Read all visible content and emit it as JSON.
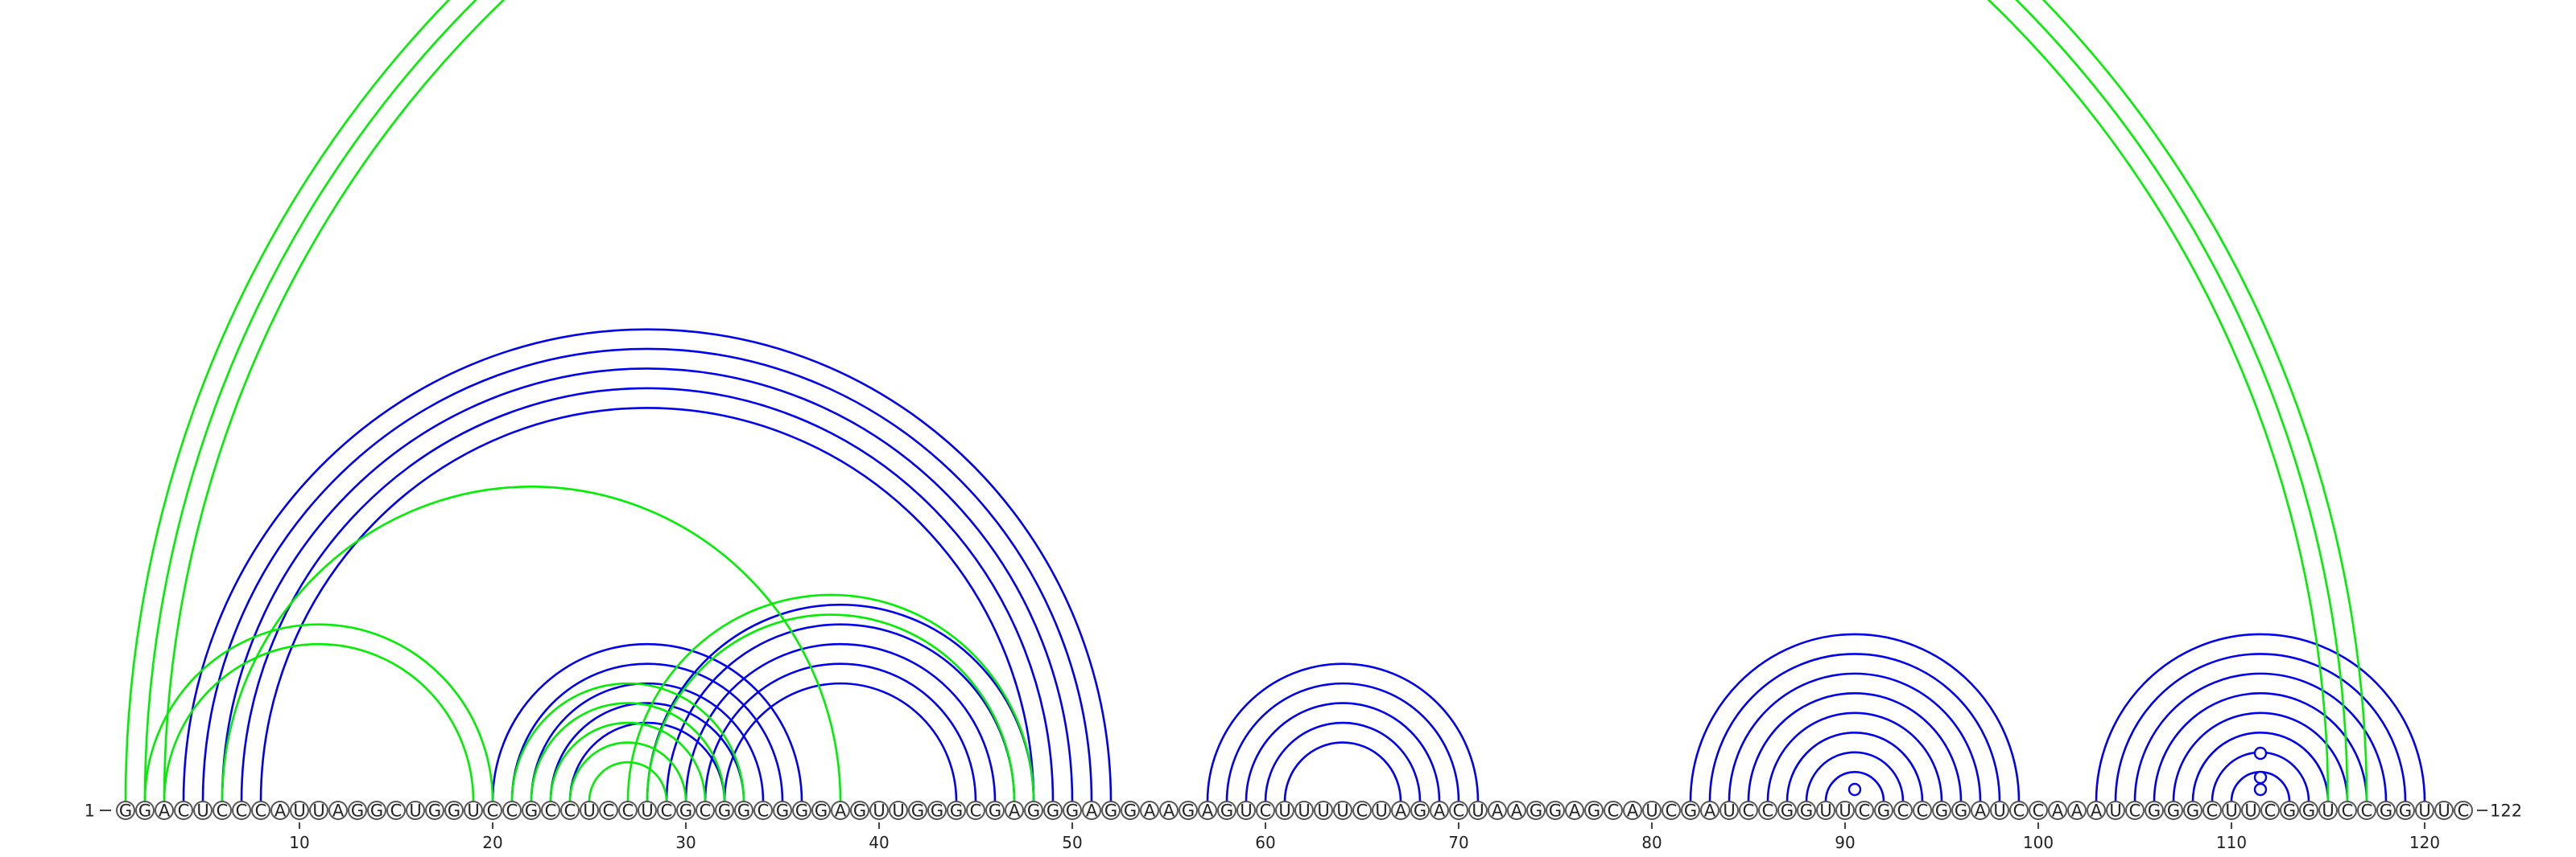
{
  "chart_data": {
    "type": "arc-diagram",
    "sequence": "GGACUCCCAUUAGGCUGGUCCGCCUCCUCGCGGCGGGAGUUGGGCGAGGGAGGAAGAGUCUUUUCUAGACUAAGGAGCAUCGAUCCGGUUCGCCGGAUCCAAAUCGGGCUUCGGUCCGGUUC",
    "start_label": "1",
    "end_label": "122",
    "ticks": [
      10,
      20,
      30,
      40,
      50,
      60,
      70,
      80,
      90,
      100,
      110,
      120
    ],
    "colors": {
      "blue": "#0000ee",
      "green": "#00ee00"
    },
    "blue_pairs": [
      [
        4,
        52
      ],
      [
        5,
        51
      ],
      [
        6,
        50
      ],
      [
        7,
        49
      ],
      [
        8,
        48
      ],
      [
        20,
        36
      ],
      [
        21,
        35
      ],
      [
        22,
        34
      ],
      [
        23,
        33
      ],
      [
        24,
        32
      ],
      [
        28,
        48
      ],
      [
        29,
        47
      ],
      [
        30,
        46
      ],
      [
        31,
        45
      ],
      [
        32,
        44
      ],
      [
        57,
        71
      ],
      [
        58,
        70
      ],
      [
        59,
        69
      ],
      [
        60,
        68
      ],
      [
        61,
        67
      ],
      [
        82,
        99
      ],
      [
        83,
        98
      ],
      [
        84,
        97
      ],
      [
        85,
        96
      ],
      [
        86,
        95
      ],
      [
        87,
        94
      ],
      [
        88,
        93
      ],
      [
        89,
        92
      ],
      [
        103,
        120
      ],
      [
        104,
        119
      ],
      [
        105,
        118
      ],
      [
        106,
        117
      ],
      [
        107,
        116
      ],
      [
        108,
        115
      ],
      [
        109,
        114
      ],
      [
        110,
        113
      ]
    ],
    "green_pairs": [
      [
        1,
        117
      ],
      [
        2,
        116
      ],
      [
        3,
        115
      ],
      [
        2,
        20
      ],
      [
        3,
        19
      ],
      [
        6,
        38
      ],
      [
        21,
        33
      ],
      [
        22,
        32
      ],
      [
        23,
        31
      ],
      [
        27,
        48
      ],
      [
        28,
        47
      ],
      [
        24,
        30
      ],
      [
        25,
        29
      ]
    ],
    "markers": [
      {
        "position": 90.5,
        "height": 0.3,
        "color": "blue"
      },
      {
        "position": 111.5,
        "height": 0.3,
        "color": "blue"
      },
      {
        "position": 111.5,
        "height": 0.6,
        "color": "blue"
      },
      {
        "position": 111.5,
        "height": 1.2,
        "color": "blue"
      }
    ]
  }
}
